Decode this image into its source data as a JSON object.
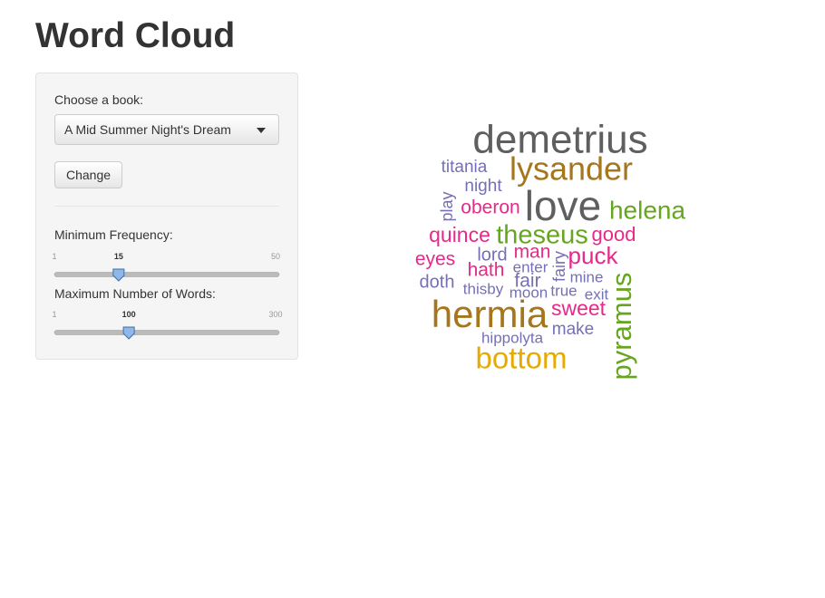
{
  "header": {
    "title": "Word Cloud"
  },
  "sidebar": {
    "book_label": "Choose a book:",
    "book_selected": "A Mid Summer Night's Dream",
    "button": "Change",
    "sliders": [
      {
        "label": "Minimum Frequency:",
        "min": 1,
        "max": 50,
        "value": 15
      },
      {
        "label": "Maximum Number of Words:",
        "min": 1,
        "max": 300,
        "value": 100
      }
    ]
  },
  "cloud": {
    "words": [
      {
        "text": "demetrius",
        "color": "#5f5f5f"
      },
      {
        "text": "lysander",
        "color": "#a6761d"
      },
      {
        "text": "titania",
        "color": "#7570b3"
      },
      {
        "text": "night",
        "color": "#7570b3"
      },
      {
        "text": "play",
        "color": "#7570b3"
      },
      {
        "text": "love",
        "color": "#5f5f5f"
      },
      {
        "text": "oberon",
        "color": "#e7298a"
      },
      {
        "text": "helena",
        "color": "#66a61e"
      },
      {
        "text": "quince",
        "color": "#e7298a"
      },
      {
        "text": "theseus",
        "color": "#66a61e"
      },
      {
        "text": "good",
        "color": "#e7298a"
      },
      {
        "text": "man",
        "color": "#e7298a"
      },
      {
        "text": "eyes",
        "color": "#e7298a"
      },
      {
        "text": "lord",
        "color": "#7570b3"
      },
      {
        "text": "fairy",
        "color": "#7570b3"
      },
      {
        "text": "puck",
        "color": "#e7298a"
      },
      {
        "text": "hath",
        "color": "#e7298a"
      },
      {
        "text": "enter",
        "color": "#7570b3"
      },
      {
        "text": "fair",
        "color": "#7570b3"
      },
      {
        "text": "mine",
        "color": "#7570b3"
      },
      {
        "text": "doth",
        "color": "#7570b3"
      },
      {
        "text": "thisby",
        "color": "#7570b3"
      },
      {
        "text": "moon",
        "color": "#7570b3"
      },
      {
        "text": "true",
        "color": "#7570b3"
      },
      {
        "text": "exit",
        "color": "#7570b3"
      },
      {
        "text": "pyramus",
        "color": "#66a61e"
      },
      {
        "text": "hermia",
        "color": "#a6761d"
      },
      {
        "text": "sweet",
        "color": "#e7298a"
      },
      {
        "text": "make",
        "color": "#7570b3"
      },
      {
        "text": "hippolyta",
        "color": "#7570b3"
      },
      {
        "text": "bottom",
        "color": "#e6ab02"
      }
    ]
  }
}
